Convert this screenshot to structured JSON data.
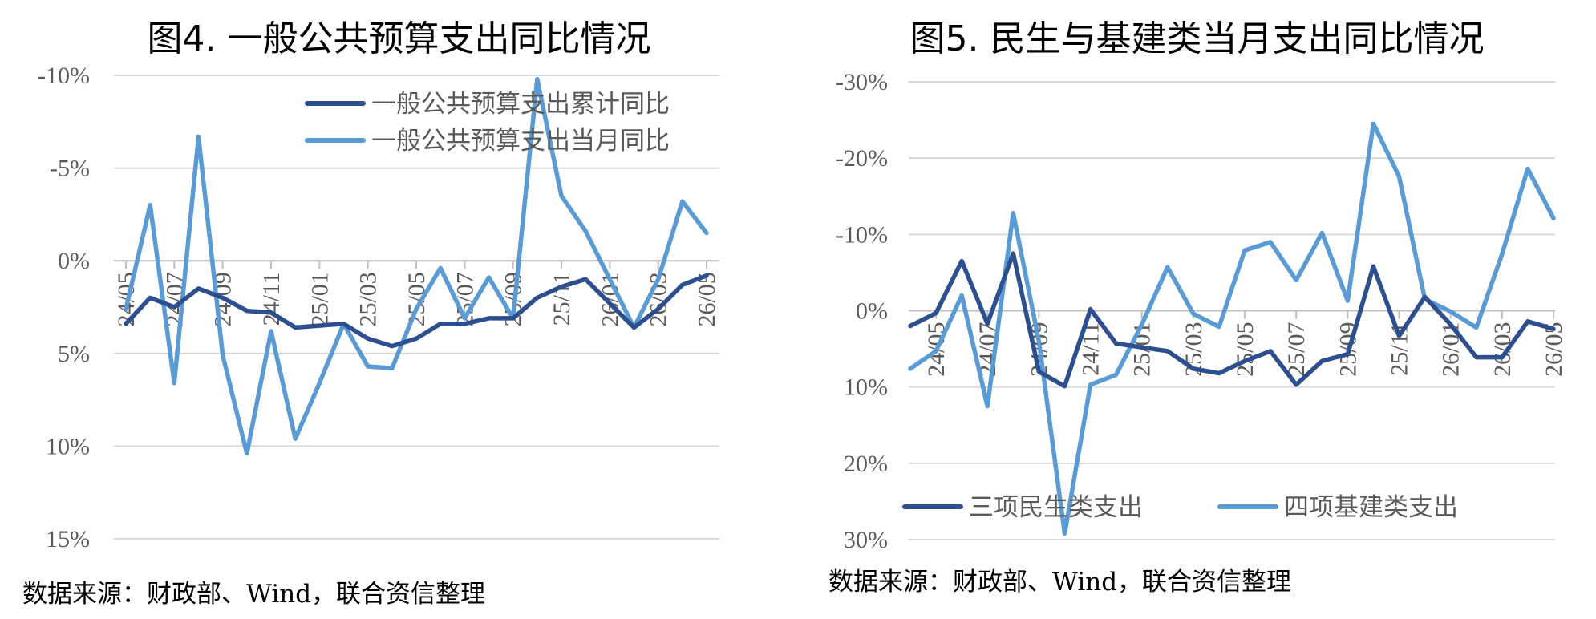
{
  "charts": [
    {
      "title": "图4. 一般公共预算支出同比情况",
      "source": "数据来源：财政部、Wind，联合资信整理"
    },
    {
      "title": "图5. 民生与基建类当月支出同比情况",
      "source": "数据来源：财政部、Wind，联合资信整理"
    }
  ],
  "chart_data": [
    {
      "type": "line",
      "title": "图4. 一般公共预算支出同比情况",
      "xlabel": "",
      "ylabel": "",
      "ylim": [
        -10,
        15
      ],
      "ytick_labels": [
        "15%",
        "10%",
        "5%",
        "0%",
        "-5%",
        "-10%"
      ],
      "x": [
        "24/05",
        "24/06",
        "24/07",
        "24/08",
        "24/09",
        "24/10",
        "24/11",
        "24/12",
        "25/01",
        "25/02",
        "25/03",
        "25/04",
        "25/05",
        "25/06",
        "25/07",
        "25/08",
        "25/09",
        "25/10",
        "25/11",
        "25/12",
        "26/01",
        "26/02",
        "26/03",
        "26/04",
        "26/05"
      ],
      "xtick_labels": [
        "24/05",
        "24/07",
        "24/09",
        "24/11",
        "25/01",
        "25/03",
        "25/05",
        "25/07",
        "25/09",
        "25/11",
        "26/01",
        "26/03",
        "26/05"
      ],
      "grid": true,
      "legend_position": "top-right",
      "colors": [
        "#2E4F8F",
        "#5B9BD5"
      ],
      "series": [
        {
          "name": "一般公共预算支出累计同比",
          "values": [
            3.4,
            2.0,
            2.5,
            1.5,
            2.0,
            2.7,
            2.8,
            3.6,
            3.5,
            3.4,
            4.2,
            4.6,
            4.2,
            3.4,
            3.4,
            3.1,
            3.1,
            2.0,
            1.4,
            1.0,
            2.3,
            3.6,
            2.6,
            1.3,
            0.8
          ]
        },
        {
          "name": "一般公共预算支出当月同比",
          "values": [
            2.6,
            -3.0,
            6.6,
            -6.7,
            5.1,
            10.4,
            3.8,
            9.6,
            6.6,
            3.4,
            5.7,
            5.8,
            2.6,
            0.4,
            3.1,
            0.9,
            3.1,
            -9.8,
            -3.5,
            -1.6,
            1.0,
            3.6,
            1.0,
            -3.2,
            -1.5
          ]
        }
      ]
    },
    {
      "type": "line",
      "title": "图5. 民生与基建类当月支出同比情况",
      "xlabel": "",
      "ylabel": "",
      "ylim": [
        -30,
        30
      ],
      "ytick_labels": [
        "30%",
        "20%",
        "10%",
        "0%",
        "-10%",
        "-20%",
        "-30%"
      ],
      "x": [
        "24/04",
        "24/05",
        "24/06",
        "24/07",
        "24/08",
        "24/09",
        "24/10",
        "24/11",
        "24/12",
        "25/01",
        "25/02",
        "25/03",
        "25/04",
        "25/05",
        "25/06",
        "25/07",
        "25/08",
        "25/09",
        "25/10",
        "25/11",
        "25/12",
        "26/01",
        "26/02",
        "26/03",
        "26/04",
        "26/05"
      ],
      "xtick_labels": [
        "24/05",
        "24/07",
        "24/09",
        "24/11",
        "25/01",
        "25/03",
        "25/05",
        "25/07",
        "25/09",
        "25/11",
        "26/01",
        "26/03",
        "26/05"
      ],
      "grid": true,
      "legend_position": "bottom",
      "colors": [
        "#2E4F8F",
        "#5B9BD5"
      ],
      "series": [
        {
          "name": "三项民生类支出",
          "values": [
            2.0,
            0.3,
            -6.5,
            1.7,
            -7.5,
            8.0,
            9.9,
            -0.2,
            4.3,
            4.8,
            5.3,
            7.6,
            8.2,
            6.6,
            5.3,
            9.7,
            6.6,
            5.7,
            -5.8,
            3.3,
            -1.8,
            1.8,
            6.1,
            6.1,
            1.4,
            2.4
          ]
        },
        {
          "name": "四项基建类支出",
          "values": [
            7.6,
            5.3,
            -2.0,
            12.5,
            -12.8,
            4.0,
            29.2,
            9.7,
            8.4,
            1.8,
            -5.7,
            0.4,
            2.1,
            -7.9,
            -9.0,
            -4.0,
            -10.2,
            -1.3,
            -24.5,
            -17.6,
            -1.5,
            0.1,
            2.2,
            -7.4,
            -18.6,
            -12.1
          ]
        }
      ]
    }
  ]
}
